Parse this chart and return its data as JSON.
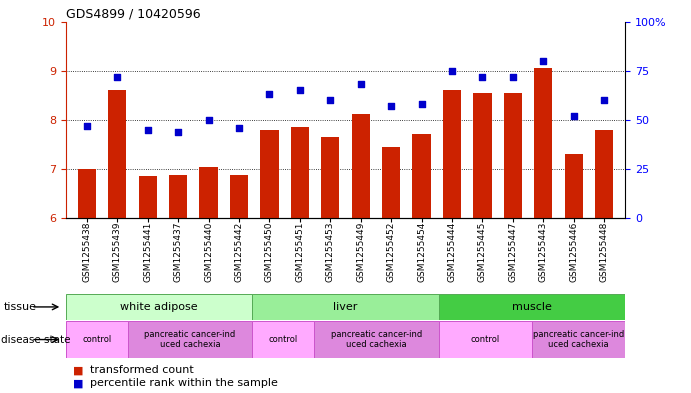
{
  "title": "GDS4899 / 10420596",
  "samples": [
    "GSM1255438",
    "GSM1255439",
    "GSM1255441",
    "GSM1255437",
    "GSM1255440",
    "GSM1255442",
    "GSM1255450",
    "GSM1255451",
    "GSM1255453",
    "GSM1255449",
    "GSM1255452",
    "GSM1255454",
    "GSM1255444",
    "GSM1255445",
    "GSM1255447",
    "GSM1255443",
    "GSM1255446",
    "GSM1255448"
  ],
  "bar_values": [
    7.0,
    8.6,
    6.85,
    6.87,
    7.05,
    6.87,
    7.8,
    7.85,
    7.65,
    8.12,
    7.45,
    7.72,
    8.6,
    8.55,
    8.55,
    9.05,
    7.3,
    7.8
  ],
  "dot_values": [
    47,
    72,
    45,
    44,
    50,
    46,
    63,
    65,
    60,
    68,
    57,
    58,
    75,
    72,
    72,
    80,
    52,
    60
  ],
  "bar_color": "#cc2200",
  "dot_color": "#0000cc",
  "ylim_left": [
    6,
    10
  ],
  "ylim_right": [
    0,
    100
  ],
  "yticks_left": [
    6,
    7,
    8,
    9,
    10
  ],
  "yticks_right": [
    0,
    25,
    50,
    75,
    100
  ],
  "tissue_groups": [
    {
      "label": "white adipose",
      "start": 0,
      "end": 6,
      "color": "#ccffcc"
    },
    {
      "label": "liver",
      "start": 6,
      "end": 12,
      "color": "#99ee99"
    },
    {
      "label": "muscle",
      "start": 12,
      "end": 18,
      "color": "#44cc44"
    }
  ],
  "disease_groups": [
    {
      "label": "control",
      "start": 0,
      "end": 2,
      "color": "#ffaaff"
    },
    {
      "label": "pancreatic cancer-ind\nuced cachexia",
      "start": 2,
      "end": 6,
      "color": "#dd88dd"
    },
    {
      "label": "control",
      "start": 6,
      "end": 8,
      "color": "#ffaaff"
    },
    {
      "label": "pancreatic cancer-ind\nuced cachexia",
      "start": 8,
      "end": 12,
      "color": "#dd88dd"
    },
    {
      "label": "control",
      "start": 12,
      "end": 15,
      "color": "#ffaaff"
    },
    {
      "label": "pancreatic cancer-ind\nuced cachexia",
      "start": 15,
      "end": 18,
      "color": "#dd88dd"
    }
  ]
}
